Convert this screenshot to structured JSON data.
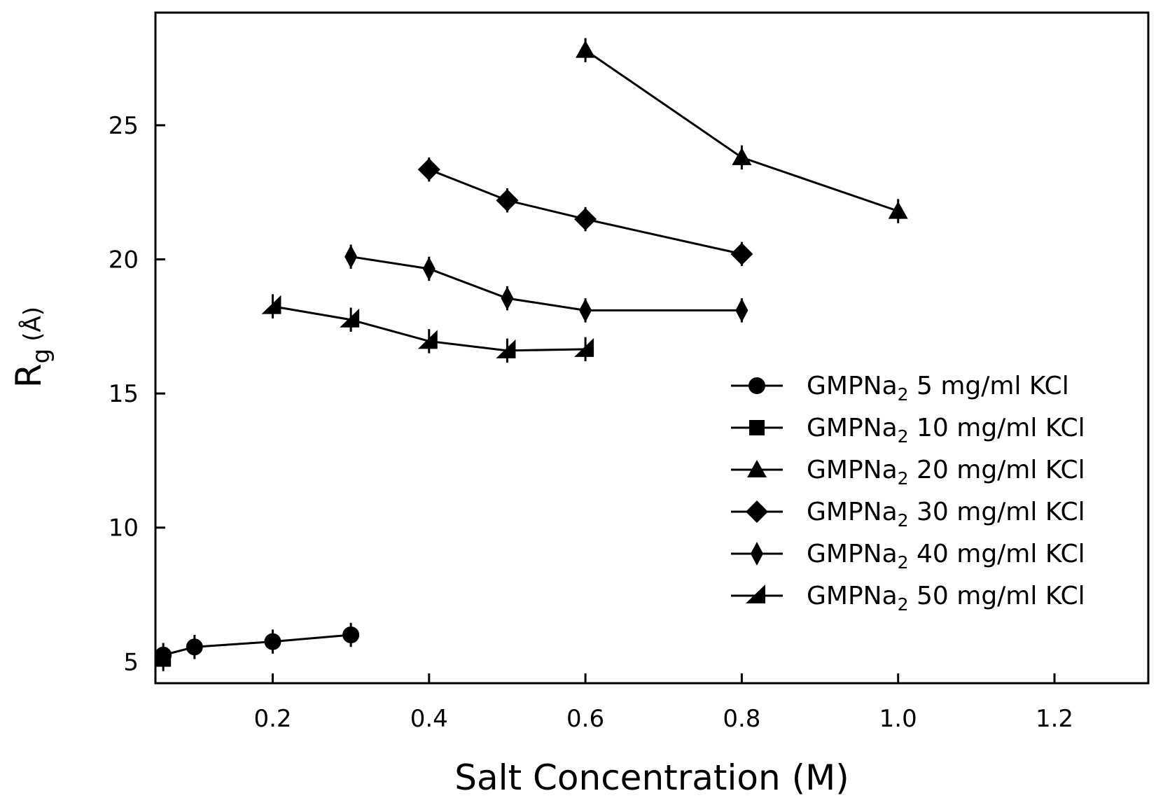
{
  "chart_data": {
    "type": "line",
    "xlabel": "Salt Concentration (M)",
    "ylabel_main": "R",
    "ylabel_sub": "g",
    "ylabel_unit": "(Å)",
    "xlim": [
      0.05,
      1.32
    ],
    "ylim": [
      4.2,
      29.2
    ],
    "xticks": [
      0.2,
      0.4,
      0.6,
      0.8,
      1.0,
      1.2
    ],
    "xtick_labels": [
      "0.2",
      "0.4",
      "0.6",
      "0.8",
      "1.0",
      "1.2"
    ],
    "yticks": [
      5,
      10,
      15,
      20,
      25
    ],
    "ytick_labels": [
      "5",
      "10",
      "15",
      "20",
      "25"
    ],
    "legend_position": "center-right",
    "series": [
      {
        "name": "GMPNa2 5 mg/ml KCl",
        "legend_main": "GMPNa",
        "legend_sub": "2",
        "legend_rest": "  5 mg/ml KCl",
        "marker": "circle",
        "x": [
          0.06,
          0.1,
          0.2,
          0.3
        ],
        "y": [
          5.25,
          5.55,
          5.75,
          6.0
        ],
        "err": [
          0.45,
          0.45,
          0.45,
          0.45
        ]
      },
      {
        "name": "GMPNa2 10 mg/ml KCl",
        "legend_main": "GMPNa",
        "legend_sub": "2",
        "legend_rest": " 10 mg/ml KCl",
        "marker": "square",
        "x": [
          0.06
        ],
        "y": [
          5.1
        ],
        "err": [
          0.45
        ]
      },
      {
        "name": "GMPNa2 20 mg/ml KCl",
        "legend_main": "GMPNa",
        "legend_sub": "2",
        "legend_rest": " 20 mg/ml KCl",
        "marker": "triangle",
        "x": [
          0.6,
          0.8,
          1.0
        ],
        "y": [
          27.8,
          23.8,
          21.8
        ],
        "err": [
          0.45,
          0.45,
          0.45
        ]
      },
      {
        "name": "GMPNa2 30 mg/ml KCl",
        "legend_main": "GMPNa",
        "legend_sub": "2",
        "legend_rest": " 30 mg/ml KCl",
        "marker": "diamond",
        "x": [
          0.4,
          0.5,
          0.6,
          0.8
        ],
        "y": [
          23.35,
          22.2,
          21.5,
          20.2
        ],
        "err": [
          0.45,
          0.45,
          0.45,
          0.45
        ]
      },
      {
        "name": "GMPNa2 40 mg/ml KCl",
        "legend_main": "GMPNa",
        "legend_sub": "2",
        "legend_rest": " 40 mg/ml KCl",
        "marker": "thin-diamond",
        "x": [
          0.3,
          0.4,
          0.5,
          0.6,
          0.8
        ],
        "y": [
          20.1,
          19.65,
          18.55,
          18.1,
          18.1
        ],
        "err": [
          0.45,
          0.45,
          0.45,
          0.45,
          0.45
        ]
      },
      {
        "name": "GMPNa2 50 mg/ml KCl",
        "legend_main": "GMPNa",
        "legend_sub": "2",
        "legend_rest": " 50 mg/ml KCl",
        "marker": "half-triangle",
        "x": [
          0.2,
          0.3,
          0.4,
          0.5,
          0.6
        ],
        "y": [
          18.25,
          17.75,
          16.95,
          16.6,
          16.65
        ],
        "err": [
          0.45,
          0.45,
          0.45,
          0.45,
          0.45
        ]
      }
    ]
  }
}
